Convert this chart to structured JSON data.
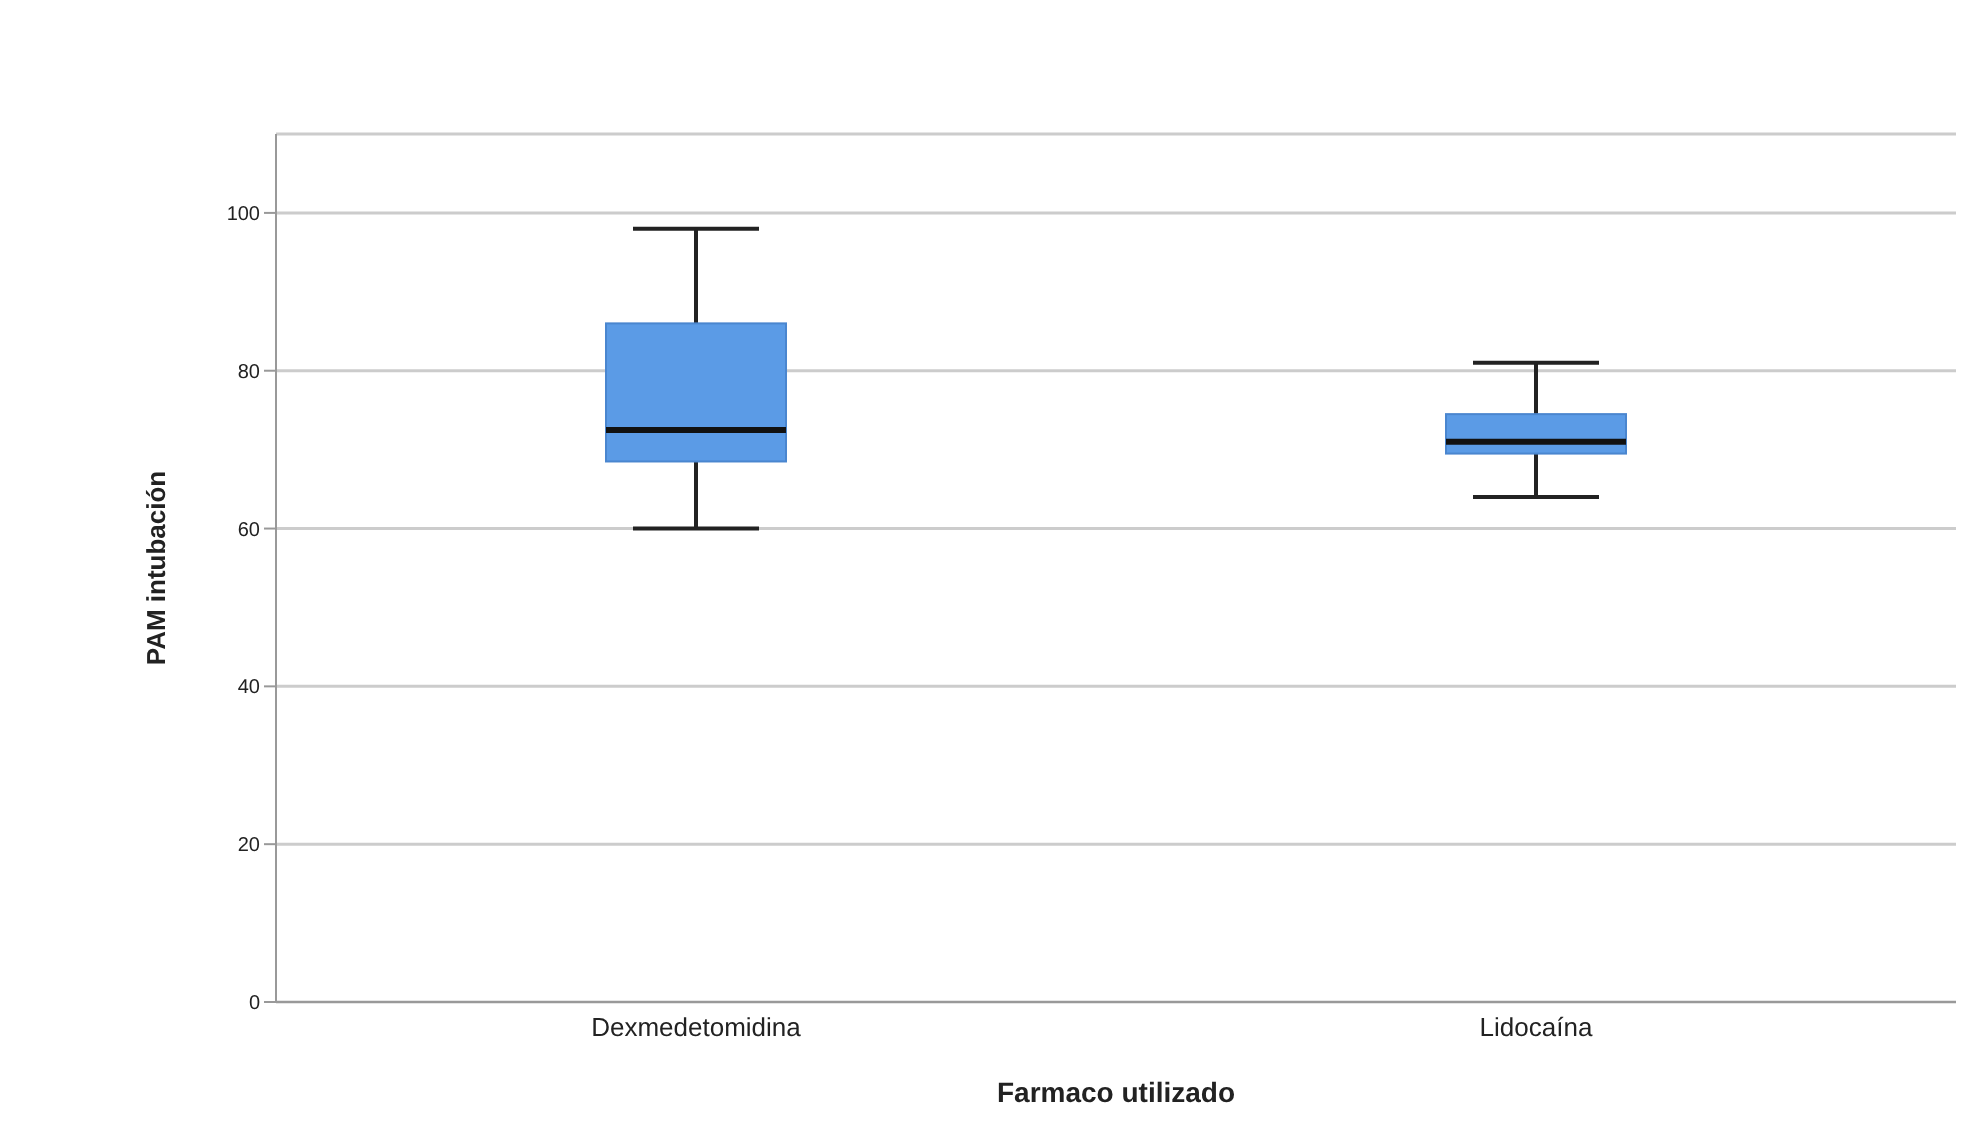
{
  "chart_data": {
    "type": "box",
    "xlabel": "Farmaco utilizado",
    "ylabel": "PAM intubación",
    "categories": [
      "Dexmedetomidina",
      "Lidocaína"
    ],
    "color": "#5b9be6",
    "boxes": [
      {
        "low": 60,
        "q1": 68.5,
        "median": 72.5,
        "q3": 86,
        "high": 98
      },
      {
        "low": 64,
        "q1": 69.5,
        "median": 71,
        "q3": 74.5,
        "high": 81
      }
    ],
    "ylim": [
      0,
      110
    ],
    "yticks": [
      0,
      20,
      40,
      60,
      80,
      100
    ],
    "grid": "y",
    "legend": false
  }
}
